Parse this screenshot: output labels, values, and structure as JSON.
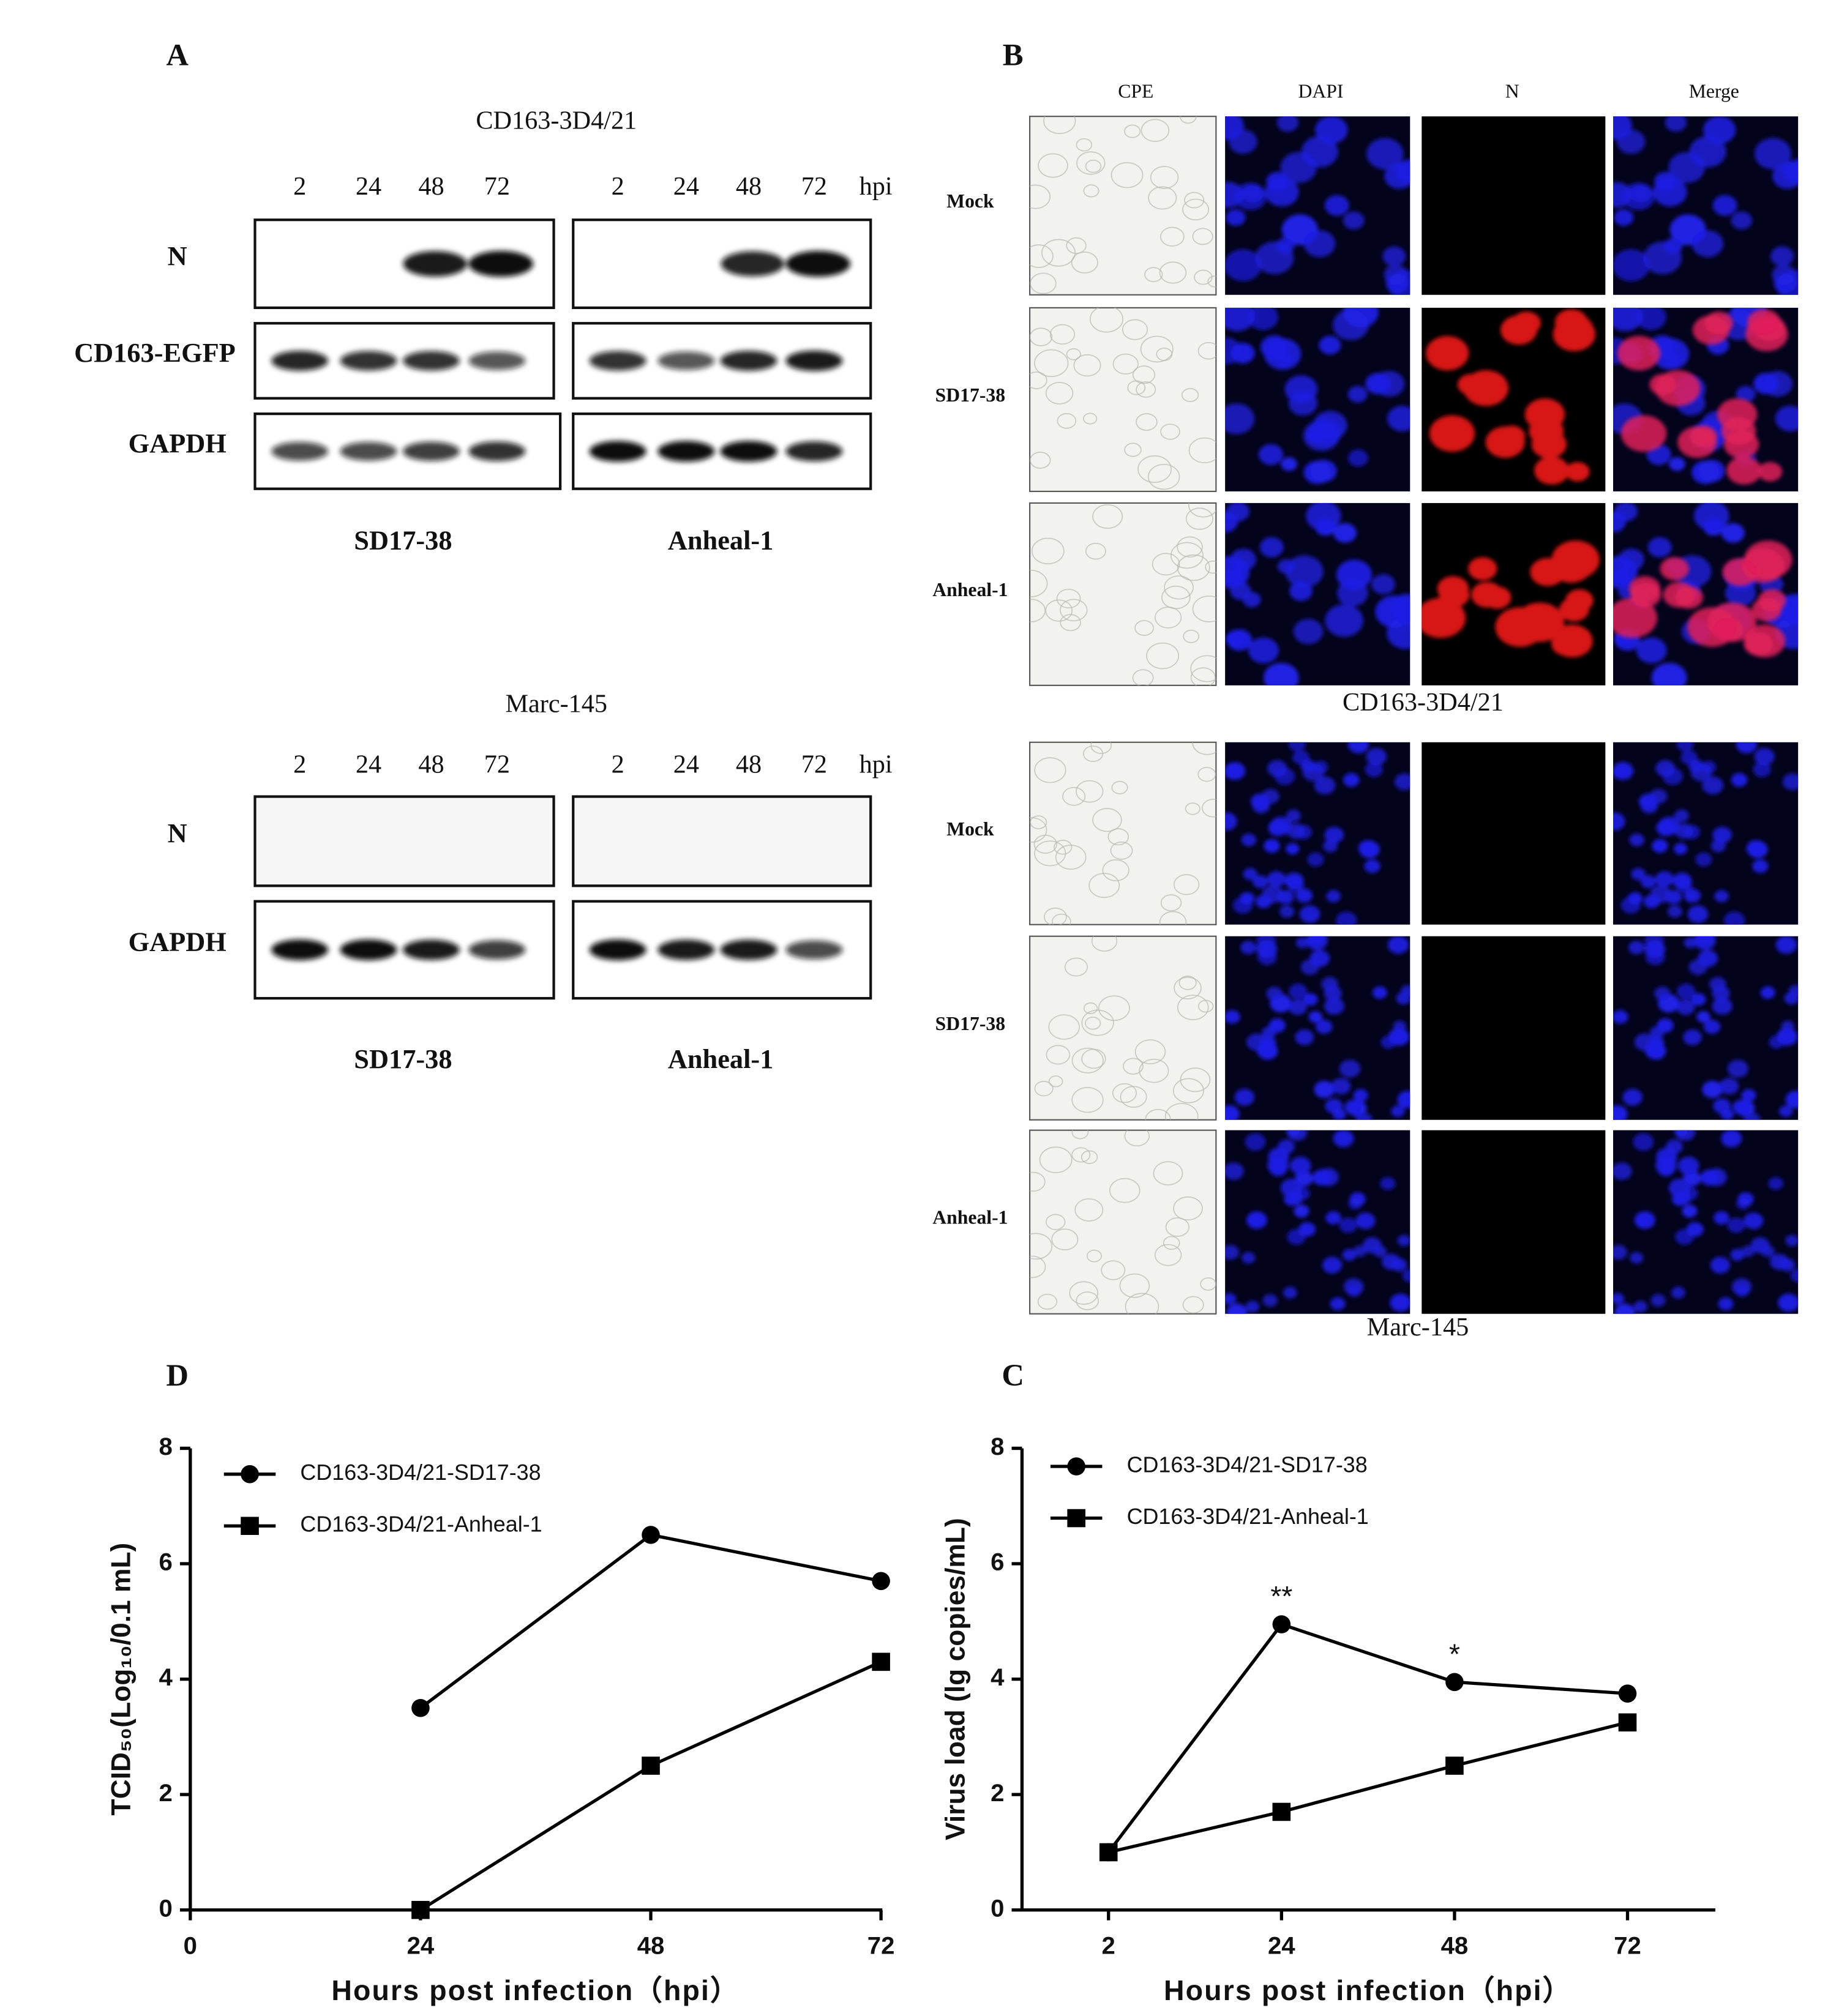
{
  "panel_a": {
    "label": "A",
    "blots": [
      {
        "title": "CD163-3D4/21",
        "lanes": [
          "2",
          "24",
          "48",
          "72"
        ],
        "lane_unit": "hpi",
        "rows": [
          "N",
          "CD163-EGFP",
          "GAPDH"
        ],
        "groups": [
          "SD17-38",
          "Anheal-1"
        ]
      },
      {
        "title": "Marc-145",
        "lanes": [
          "2",
          "24",
          "48",
          "72"
        ],
        "lane_unit": "hpi",
        "rows": [
          "N",
          "GAPDH"
        ],
        "groups": [
          "SD17-38",
          "Anheal-1"
        ]
      }
    ]
  },
  "panel_b": {
    "label": "B",
    "columns": [
      "CPE",
      "DAPI",
      "N",
      "Merge"
    ],
    "groups": [
      {
        "caption": "CD163-3D4/21",
        "rows": [
          "Mock",
          "SD17-38",
          "Anheal-1"
        ]
      },
      {
        "caption": "Marc-145",
        "rows": [
          "Mock",
          "SD17-38",
          "Anheal-1"
        ]
      }
    ]
  },
  "chart_data": [
    {
      "type": "line",
      "panel": "D",
      "ylabel": "TCID₅₀(Log₁₀/0.1 mL)",
      "xlabel": "Hours post infection（hpi）",
      "x": [
        24,
        48,
        72
      ],
      "xlim": [
        0,
        72
      ],
      "xticks": [
        0,
        24,
        48,
        72
      ],
      "ylim": [
        0,
        8
      ],
      "yticks": [
        0,
        2,
        4,
        6,
        8
      ],
      "legend": "upper left",
      "series": [
        {
          "name": "CD163-3D4/21-SD17-38",
          "color": "#000000",
          "marker": "circle",
          "values": [
            3.5,
            6.5,
            5.7
          ]
        },
        {
          "name": "CD163-3D4/21-Anheal-1",
          "color": "#000000",
          "marker": "square",
          "values": [
            0,
            2.5,
            4.3
          ]
        }
      ]
    },
    {
      "type": "line",
      "panel": "C",
      "ylabel": "Virus load (lg copies/mL)",
      "xlabel": "Hours post infection（hpi）",
      "categories": [
        "2",
        "24",
        "48",
        "72"
      ],
      "ylim": [
        0,
        8
      ],
      "yticks": [
        0,
        2,
        4,
        6,
        8
      ],
      "legend": "upper left",
      "significance": [
        null,
        "**",
        "*",
        null
      ],
      "series": [
        {
          "name": "CD163-3D4/21-SD17-38",
          "color": "#000000",
          "marker": "circle",
          "values": [
            1.0,
            4.95,
            3.95,
            3.75
          ]
        },
        {
          "name": "CD163-3D4/21-Anheal-1",
          "color": "#000000",
          "marker": "square",
          "values": [
            1.0,
            1.7,
            2.5,
            3.25
          ]
        }
      ]
    }
  ]
}
